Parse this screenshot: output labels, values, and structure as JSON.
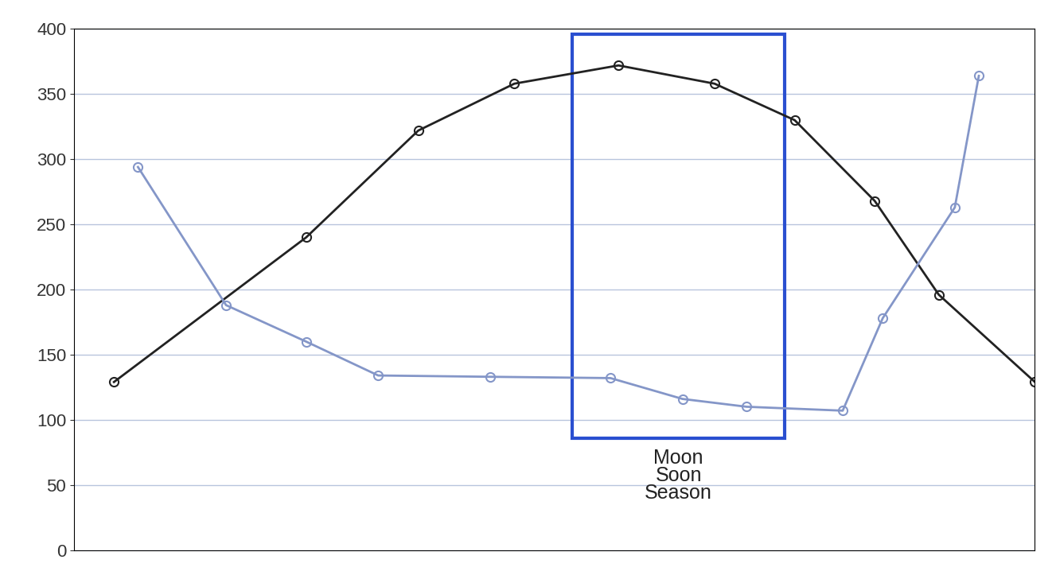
{
  "chart_data": {
    "type": "line",
    "xlim": [
      0,
      12
    ],
    "ylim": [
      0,
      400
    ],
    "yticks": [
      0,
      50,
      100,
      150,
      200,
      250,
      300,
      350,
      400
    ],
    "grid": true,
    "tick_labels": "y",
    "series": [
      {
        "color": "#222222",
        "marker": "o",
        "line_style": "solid",
        "x": [
          0.5,
          2.9,
          4.3,
          5.5,
          6.8,
          8.0,
          9.0,
          10.0,
          10.8,
          12.0
        ],
        "values": [
          129,
          240,
          322,
          358,
          372,
          358,
          330,
          268,
          196,
          129
        ]
      },
      {
        "color": "#8496c8",
        "marker": "o",
        "line_style": "solid",
        "x": [
          0.8,
          1.9,
          2.9,
          3.8,
          5.2,
          6.7,
          7.6,
          8.4,
          9.6,
          10.1,
          11.0,
          11.3
        ],
        "values": [
          294,
          188,
          160,
          134,
          133,
          132,
          116,
          110,
          107,
          178,
          263,
          364
        ]
      }
    ],
    "annotations": [
      {
        "text": "Moon\nSoon\nSeason",
        "x": [
          6.7,
          8.4
        ]
      }
    ]
  }
}
